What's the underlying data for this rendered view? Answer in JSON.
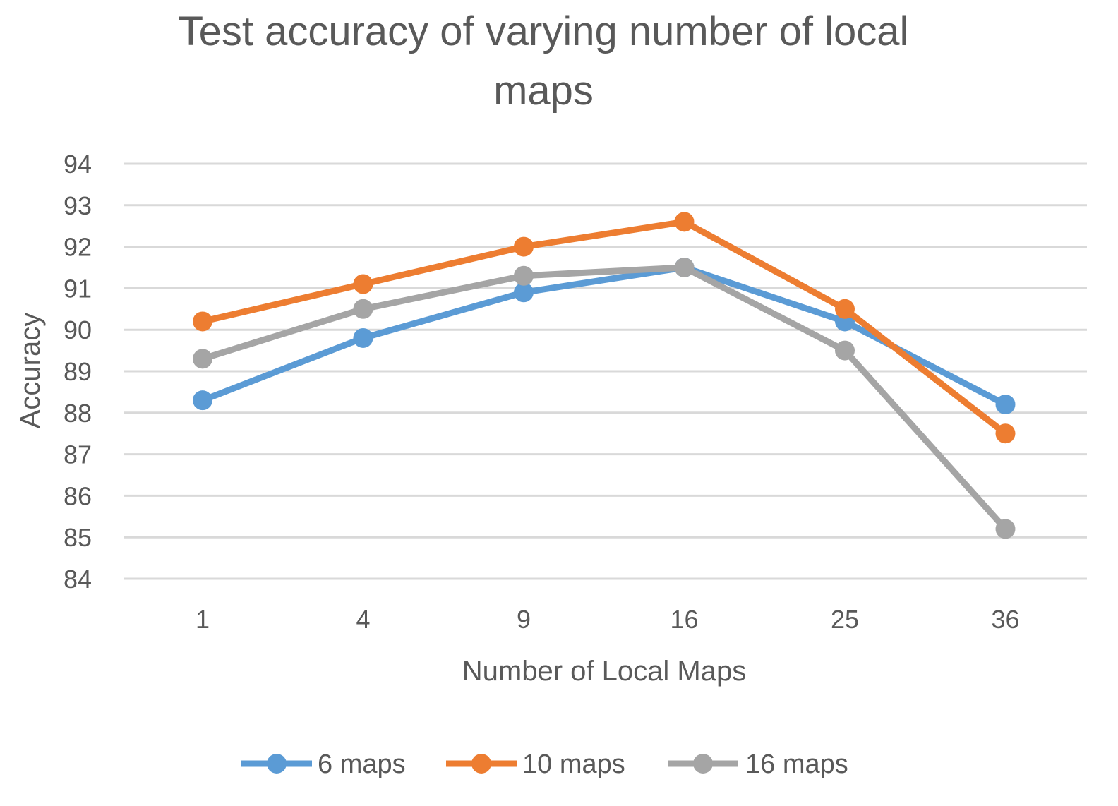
{
  "chart_data": {
    "type": "line",
    "title_lines": [
      "Test accuracy of varying number of local",
      "maps"
    ],
    "xlabel": "Number of Local Maps",
    "ylabel": "Accuracy",
    "categories": [
      "1",
      "4",
      "9",
      "16",
      "25",
      "36"
    ],
    "ylim": [
      84,
      94
    ],
    "yticks": [
      84,
      85,
      86,
      87,
      88,
      89,
      90,
      91,
      92,
      93,
      94
    ],
    "grid": true,
    "legend_position": "bottom",
    "series": [
      {
        "name": "6 maps",
        "color": "#5B9BD5",
        "values": [
          88.3,
          89.8,
          90.9,
          91.5,
          90.2,
          88.2
        ]
      },
      {
        "name": "10 maps",
        "color": "#ED7D31",
        "values": [
          90.2,
          91.1,
          92.0,
          92.6,
          90.5,
          87.5
        ]
      },
      {
        "name": "16 maps",
        "color": "#A5A5A5",
        "values": [
          89.3,
          90.5,
          91.3,
          91.5,
          89.5,
          85.2
        ]
      }
    ]
  }
}
